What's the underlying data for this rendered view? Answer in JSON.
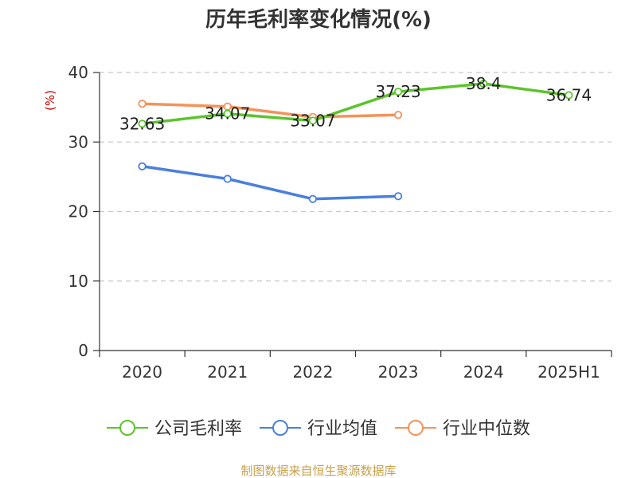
{
  "chart_data": {
    "type": "line",
    "title": "历年毛利率变化情况(%)",
    "unit_label": "(%)",
    "categories": [
      "2020",
      "2021",
      "2022",
      "2023",
      "2024",
      "2025H1"
    ],
    "ylim": [
      0,
      40
    ],
    "yticks": [
      0,
      10,
      20,
      30,
      40
    ],
    "grid": true,
    "legend_position": "bottom",
    "series": [
      {
        "name": "公司毛利率",
        "color": "#5cc42b",
        "values": [
          32.63,
          34.07,
          33.07,
          37.23,
          38.4,
          36.74
        ],
        "labels": [
          "32.63",
          "34.07",
          "33.07",
          "37.23",
          "38.4",
          "36.74"
        ]
      },
      {
        "name": "行业均值",
        "color": "#4a7fdc",
        "values": [
          26.5,
          24.7,
          21.8,
          22.2,
          null,
          null
        ]
      },
      {
        "name": "行业中位数",
        "color": "#f5925a",
        "values": [
          35.5,
          35.1,
          33.6,
          33.9,
          null,
          null
        ]
      }
    ]
  },
  "source_text": "制图数据来自恒生聚源数据库"
}
